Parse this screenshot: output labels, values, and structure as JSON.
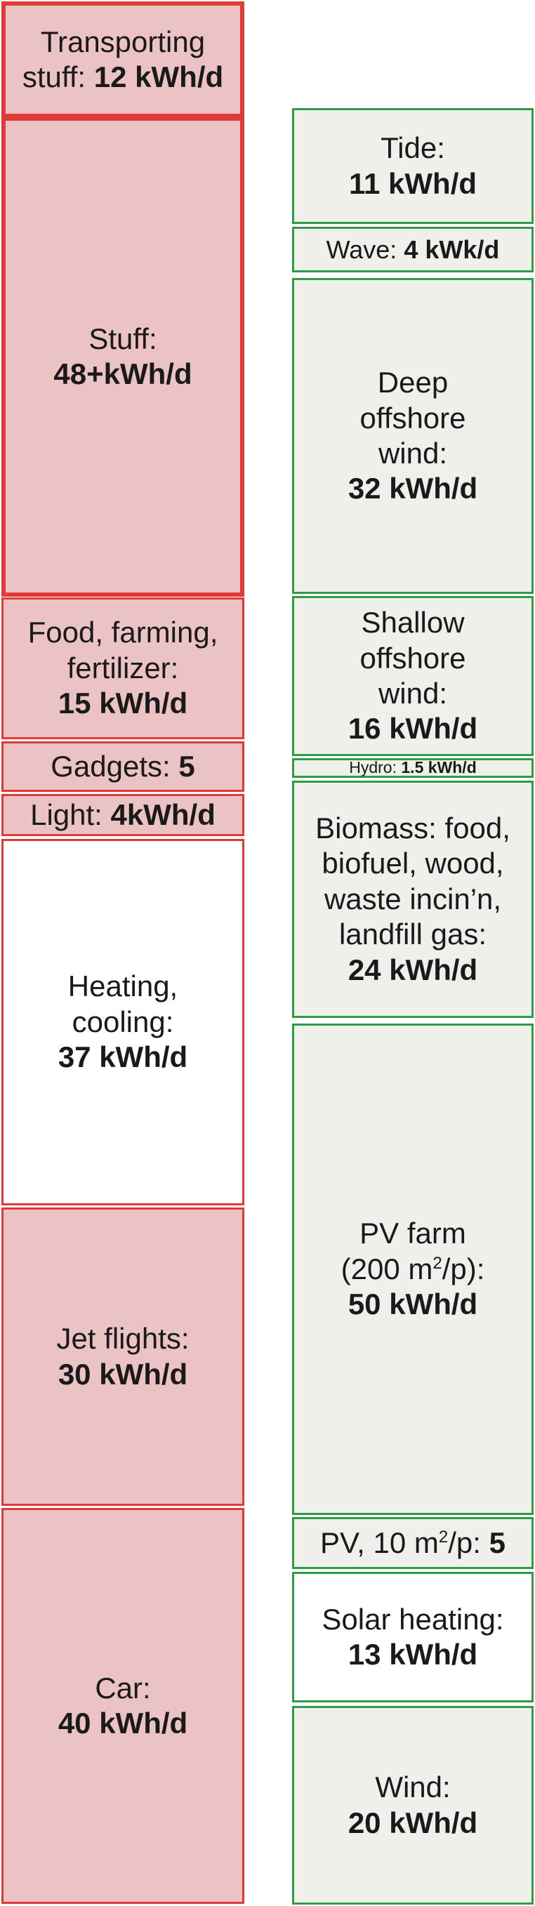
{
  "consumption": {
    "transporting_stuff": {
      "label": "Transporting",
      "label2": "stuff:",
      "value": "12 kWh/d"
    },
    "stuff": {
      "label": "Stuff:",
      "value": "48+kWh/d"
    },
    "food": {
      "label": "Food, farming,\nfertilizer:",
      "value": "15 kWh/d"
    },
    "gadgets": {
      "label": "Gadgets:",
      "value": "5"
    },
    "light": {
      "label": "Light:",
      "value": "4kWh/d"
    },
    "heating": {
      "label": "Heating,\ncooling:",
      "value": "37 kWh/d"
    },
    "jet": {
      "label": "Jet flights:",
      "value": "30 kWh/d"
    },
    "car": {
      "label": "Car:",
      "value": "40 kWh/d"
    }
  },
  "production": {
    "tide": {
      "label": "Tide:",
      "value": "11 kWh/d"
    },
    "wave": {
      "label": "Wave:",
      "value": "4 kWk/d"
    },
    "deep_wind": {
      "label": "Deep\noffshore\nwind:",
      "value": "32 kWh/d"
    },
    "shallow_wind": {
      "label": "Shallow\noffshore\nwind:",
      "value": "16 kWh/d"
    },
    "hydro": {
      "label": "Hydro:",
      "value": "1.5 kWh/d"
    },
    "biomass": {
      "label": "Biomass: food,\nbiofuel, wood,\nwaste incin’n,\nlandfill gas:",
      "value": "24 kWh/d"
    },
    "pv_farm": {
      "label": "PV farm",
      "label_pre": "(200 m",
      "label_sup": "2",
      "label_post": "/p):",
      "value": "50 kWh/d"
    },
    "pv_roof": {
      "label_pre": "PV, 10 m",
      "label_sup": "2",
      "label_post": "/p:",
      "value": "5"
    },
    "solar_heating": {
      "label": "Solar heating:",
      "value": "13 kWh/d"
    },
    "wind": {
      "label": "Wind:",
      "value": "20 kWh/d"
    }
  },
  "colors": {
    "consumption_fill": "#ecc3c5",
    "consumption_border": "#e23a36",
    "production_fill": "#efefeb",
    "production_border": "#2f9c4a"
  }
}
